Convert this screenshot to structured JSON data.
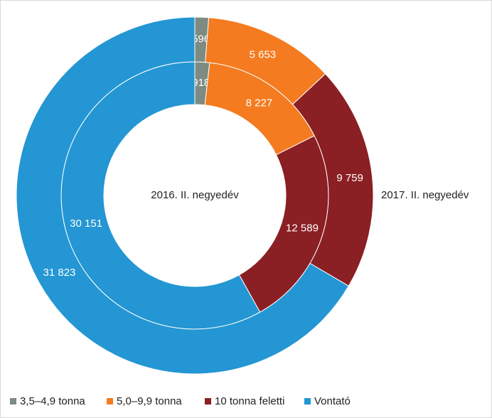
{
  "chart_data": {
    "type": "donut",
    "categories": [
      "3,5–4,9 tonna",
      "5,0–9,9 tonna",
      "10 tonna feletti",
      "Vontató"
    ],
    "colors": [
      "#7d8b82",
      "#f47b20",
      "#8a1f24",
      "#2396d3"
    ],
    "series": [
      {
        "name": "2016. II. negyedév",
        "values": [
          918,
          8227,
          12589,
          30151
        ],
        "value_labels": [
          "918",
          "8 227",
          "12 589",
          "30 151"
        ]
      },
      {
        "name": "2017. II. negyedév",
        "values": [
          596,
          5653,
          9759,
          31823
        ],
        "value_labels": [
          "596",
          "5 653",
          "9 759",
          "31 823"
        ]
      }
    ]
  }
}
